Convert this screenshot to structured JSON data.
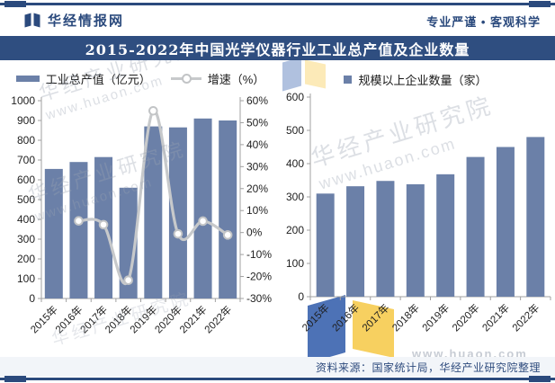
{
  "header": {
    "brand": "华经情报网",
    "tagline": "专业严谨 • 客观科学"
  },
  "title": "2015-2022年中国光学仪器行业工业总产值及企业数量",
  "source_note": "资料来源：国家统计局，华经产业研究院整理",
  "watermark": {
    "name": "华经产业研究院",
    "url": "www.huaon.com"
  },
  "colors": {
    "bar": "#6B80A8",
    "line": "#C7C9CB",
    "marker_stroke": "#C2C4C6",
    "navy": "#2B4A7D",
    "title_bg": "#2F4E80",
    "axis": "#A0A0A0",
    "tick_label": "#1F1F1F",
    "footer_bg": "#F2F5F9",
    "watermark_gray": "#9AA3B2",
    "wm_blue": "#3E66B0",
    "wm_yellow": "#F6CC52"
  },
  "chart_data": [
    {
      "type": "bar",
      "title": "工业总产值及增速",
      "categories": [
        "2015年",
        "2016年",
        "2017年",
        "2018年",
        "2019年",
        "2020年",
        "2021年",
        "2022年"
      ],
      "series": [
        {
          "name": "工业总产值（亿元）",
          "type": "bar",
          "axis": "left",
          "values": [
            655,
            690,
            715,
            560,
            870,
            865,
            910,
            900
          ]
        },
        {
          "name": "增速（%）",
          "type": "line",
          "axis": "right",
          "start_index": 1,
          "values": [
            5.3,
            3.6,
            -21.7,
            55.4,
            -0.6,
            5.2,
            -1.1
          ]
        }
      ],
      "left_axis": {
        "min": 0,
        "max": 1000,
        "step": 100
      },
      "right_axis": {
        "min": -30,
        "max": 60,
        "step": 10,
        "suffix": "%"
      },
      "legend_position": "top",
      "grid": false
    },
    {
      "type": "bar",
      "title": "规模以上企业数量",
      "categories": [
        "2015年",
        "2016年",
        "2017年",
        "2018年",
        "2019年",
        "2020年",
        "2021年",
        "2022年"
      ],
      "series": [
        {
          "name": "规模以上企业数量（家）",
          "type": "bar",
          "axis": "left",
          "values": [
            310,
            332,
            348,
            338,
            368,
            420,
            450,
            480
          ]
        }
      ],
      "left_axis": {
        "min": 0,
        "max": 600,
        "step": 100
      },
      "legend_position": "top",
      "grid": false
    }
  ]
}
